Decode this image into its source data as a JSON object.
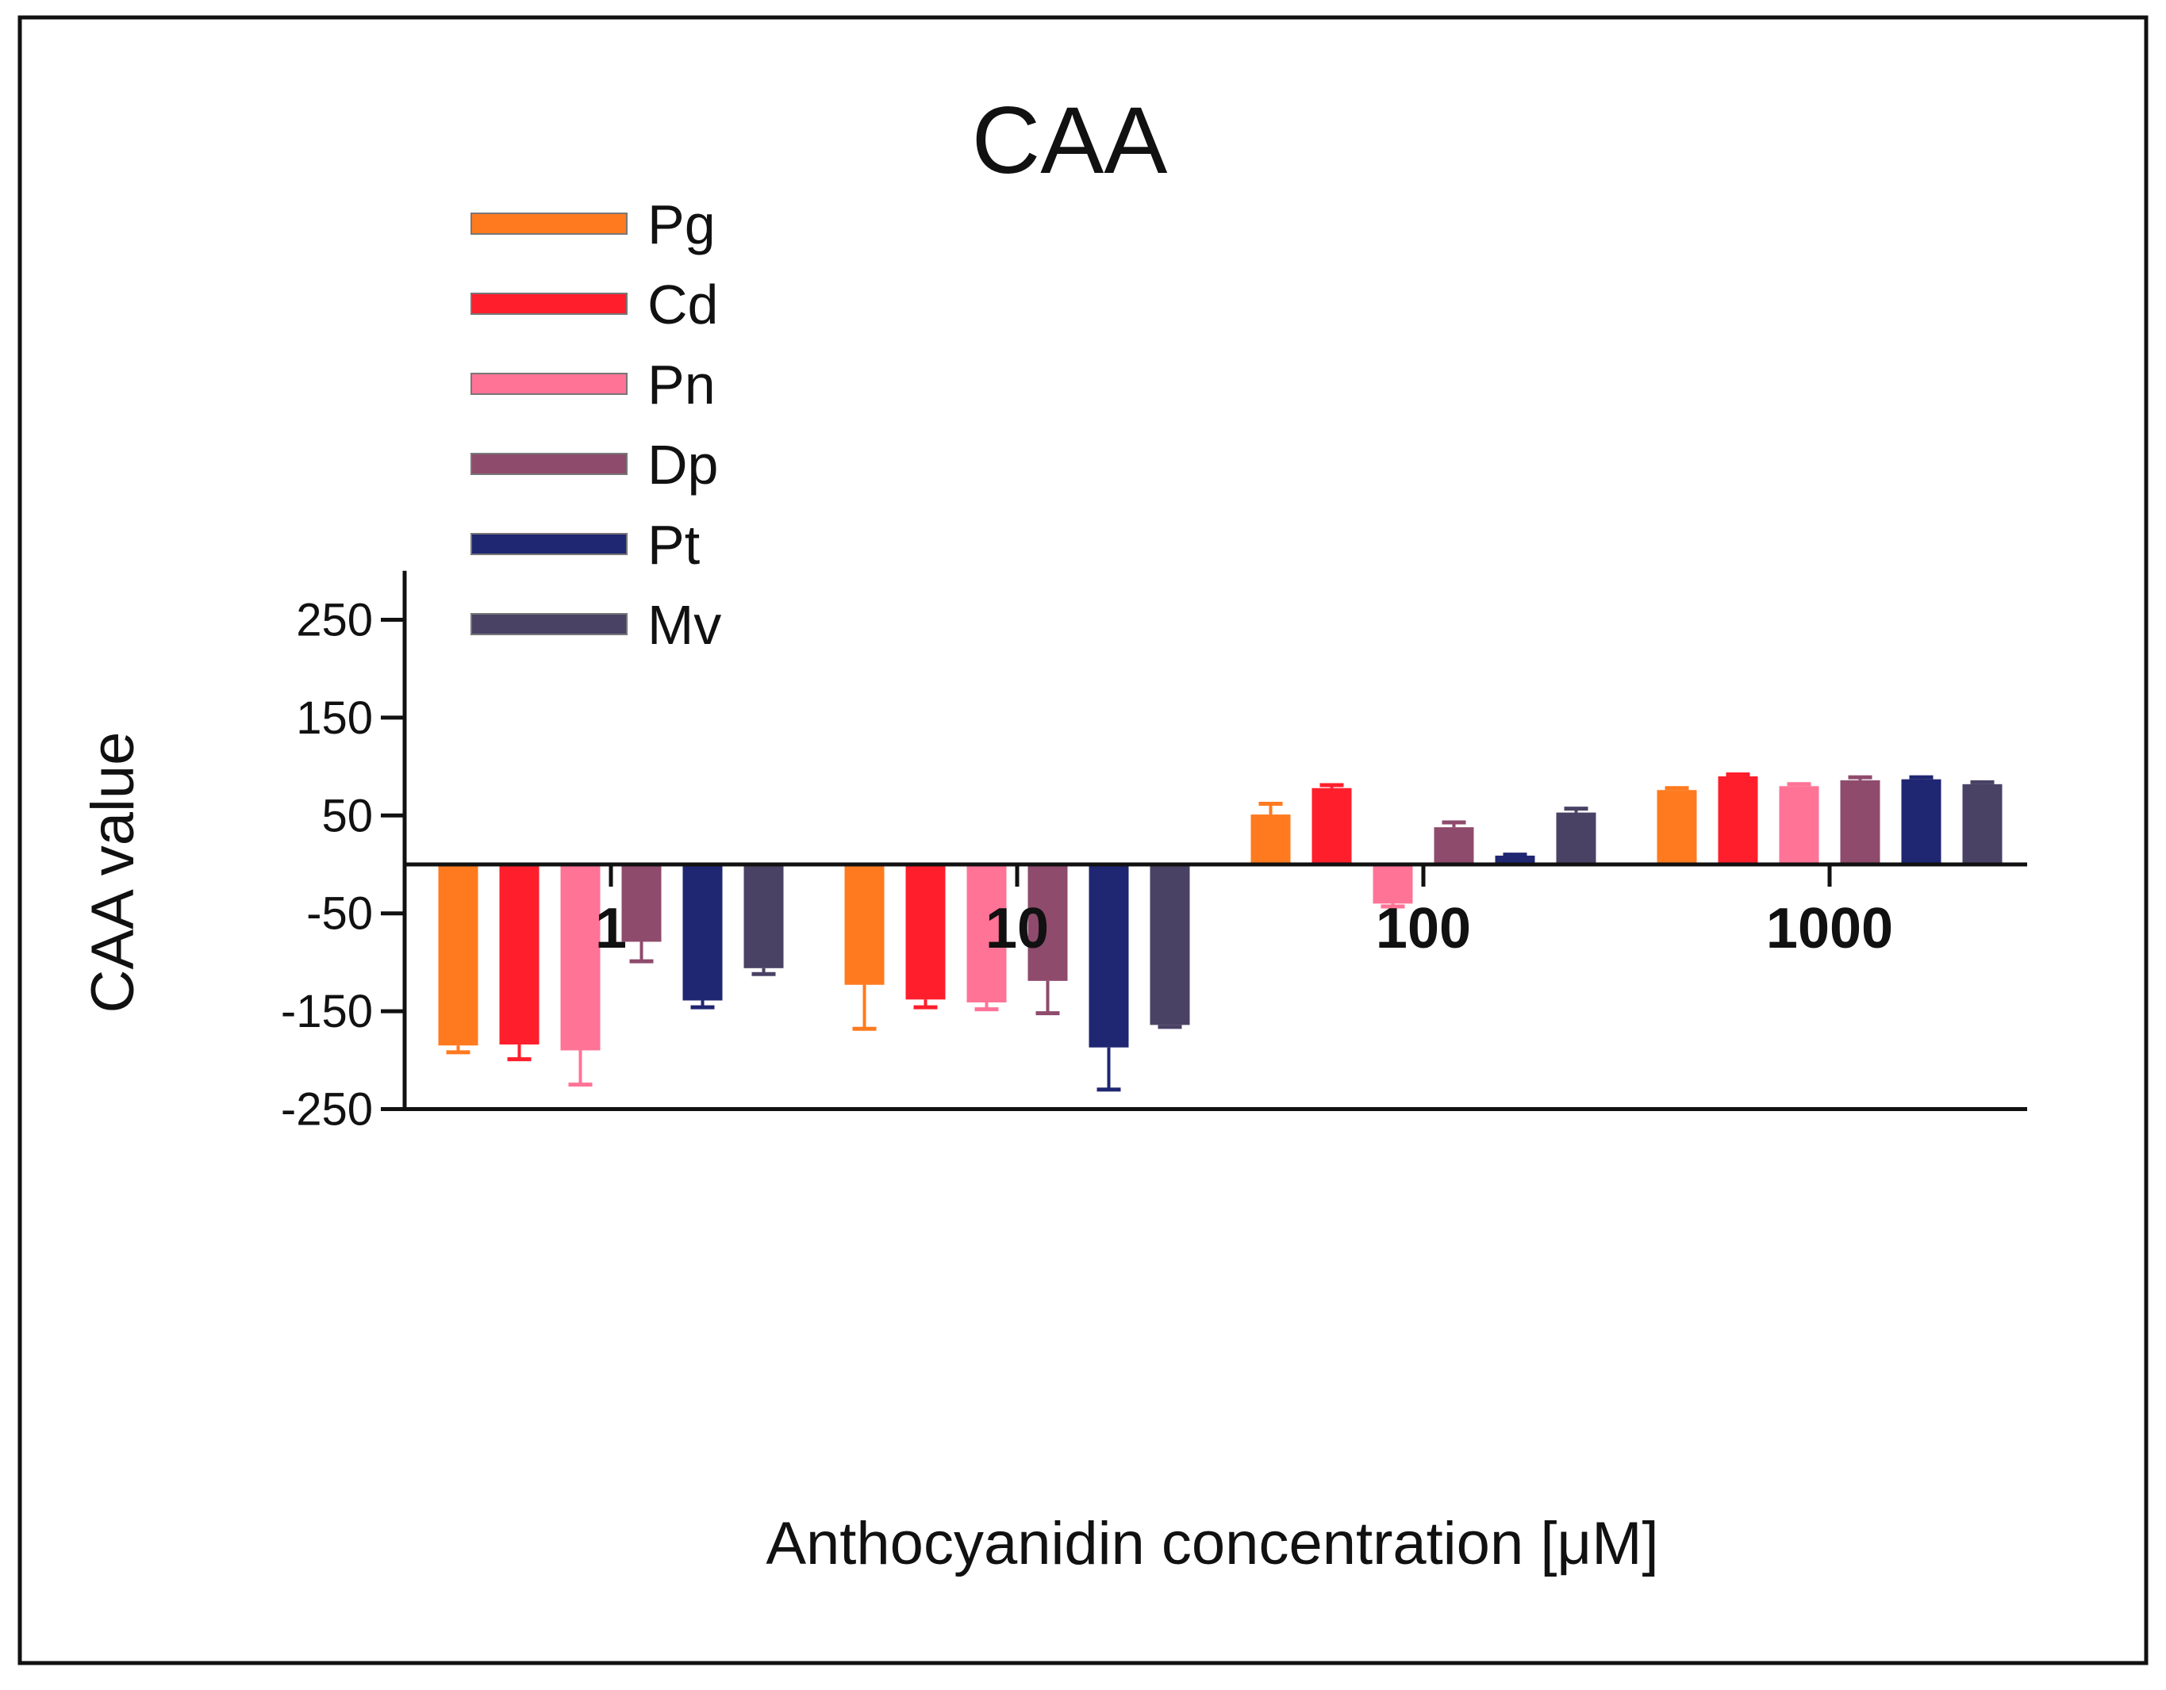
{
  "chart_data": {
    "type": "bar",
    "title": "CAA",
    "xlabel": "Anthocyanidin concentration [μM]",
    "ylabel": "CAA value",
    "ylim": [
      -250,
      300
    ],
    "yticks": [
      -250,
      -150,
      -50,
      50,
      150,
      250
    ],
    "ytick_labels": [
      "-250",
      "-150",
      "-50",
      "50",
      "150",
      "250"
    ],
    "categories": [
      "1",
      "10",
      "100",
      "1000"
    ],
    "x_scale": "log",
    "legend_position": "top-left",
    "series": [
      {
        "name": "Pg",
        "color": "#FF7A1F",
        "values": [
          -185,
          -123,
          51,
          76
        ],
        "errors": [
          7,
          45,
          11,
          2
        ]
      },
      {
        "name": "Cd",
        "color": "#FF1E2C",
        "values": [
          -184,
          -138,
          78,
          90
        ],
        "errors": [
          15,
          8,
          3,
          2
        ]
      },
      {
        "name": "Pn",
        "color": "#FF7396",
        "values": [
          -190,
          -141,
          -40,
          80
        ],
        "errors": [
          35,
          7,
          3,
          2
        ]
      },
      {
        "name": "Dp",
        "color": "#8E4B6C",
        "values": [
          -79,
          -119,
          38,
          86
        ],
        "errors": [
          20,
          33,
          5,
          3
        ]
      },
      {
        "name": "Pt",
        "color": "#1F2672",
        "values": [
          -139,
          -187,
          9,
          87
        ],
        "errors": [
          7,
          43,
          1,
          2
        ]
      },
      {
        "name": "Mv",
        "color": "#4A4265",
        "values": [
          -106,
          -164,
          53,
          82
        ],
        "errors": [
          6,
          2,
          4,
          2
        ]
      }
    ]
  }
}
